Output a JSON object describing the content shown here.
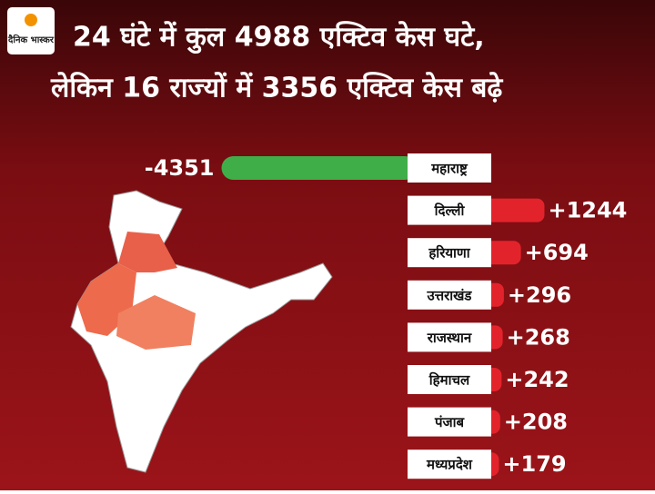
{
  "chart_data": {
    "type": "diverging-bar",
    "brand": "दैनिक भास्कर",
    "title_lines": [
      "24 घंटे में कुल 4988 एक्टिव केस घटे,",
      "लेकिन 16 राज्यों में 3356 एक्टिव केस बढ़े"
    ],
    "categories": [
      "महाराष्ट्र",
      "दिल्ली",
      "हरियाणा",
      "उत्तराखंड",
      "राजस्थान",
      "हिमाचल",
      "पंजाब",
      "मध्यप्रदेश"
    ],
    "values": [
      -4351,
      1244,
      694,
      296,
      268,
      242,
      208,
      179
    ],
    "value_labels": [
      "-4351",
      "+1244",
      "+694",
      "+296",
      "+268",
      "+242",
      "+208",
      "+179"
    ],
    "negative_color": "#3fae49",
    "positive_color": "#e3232b"
  }
}
